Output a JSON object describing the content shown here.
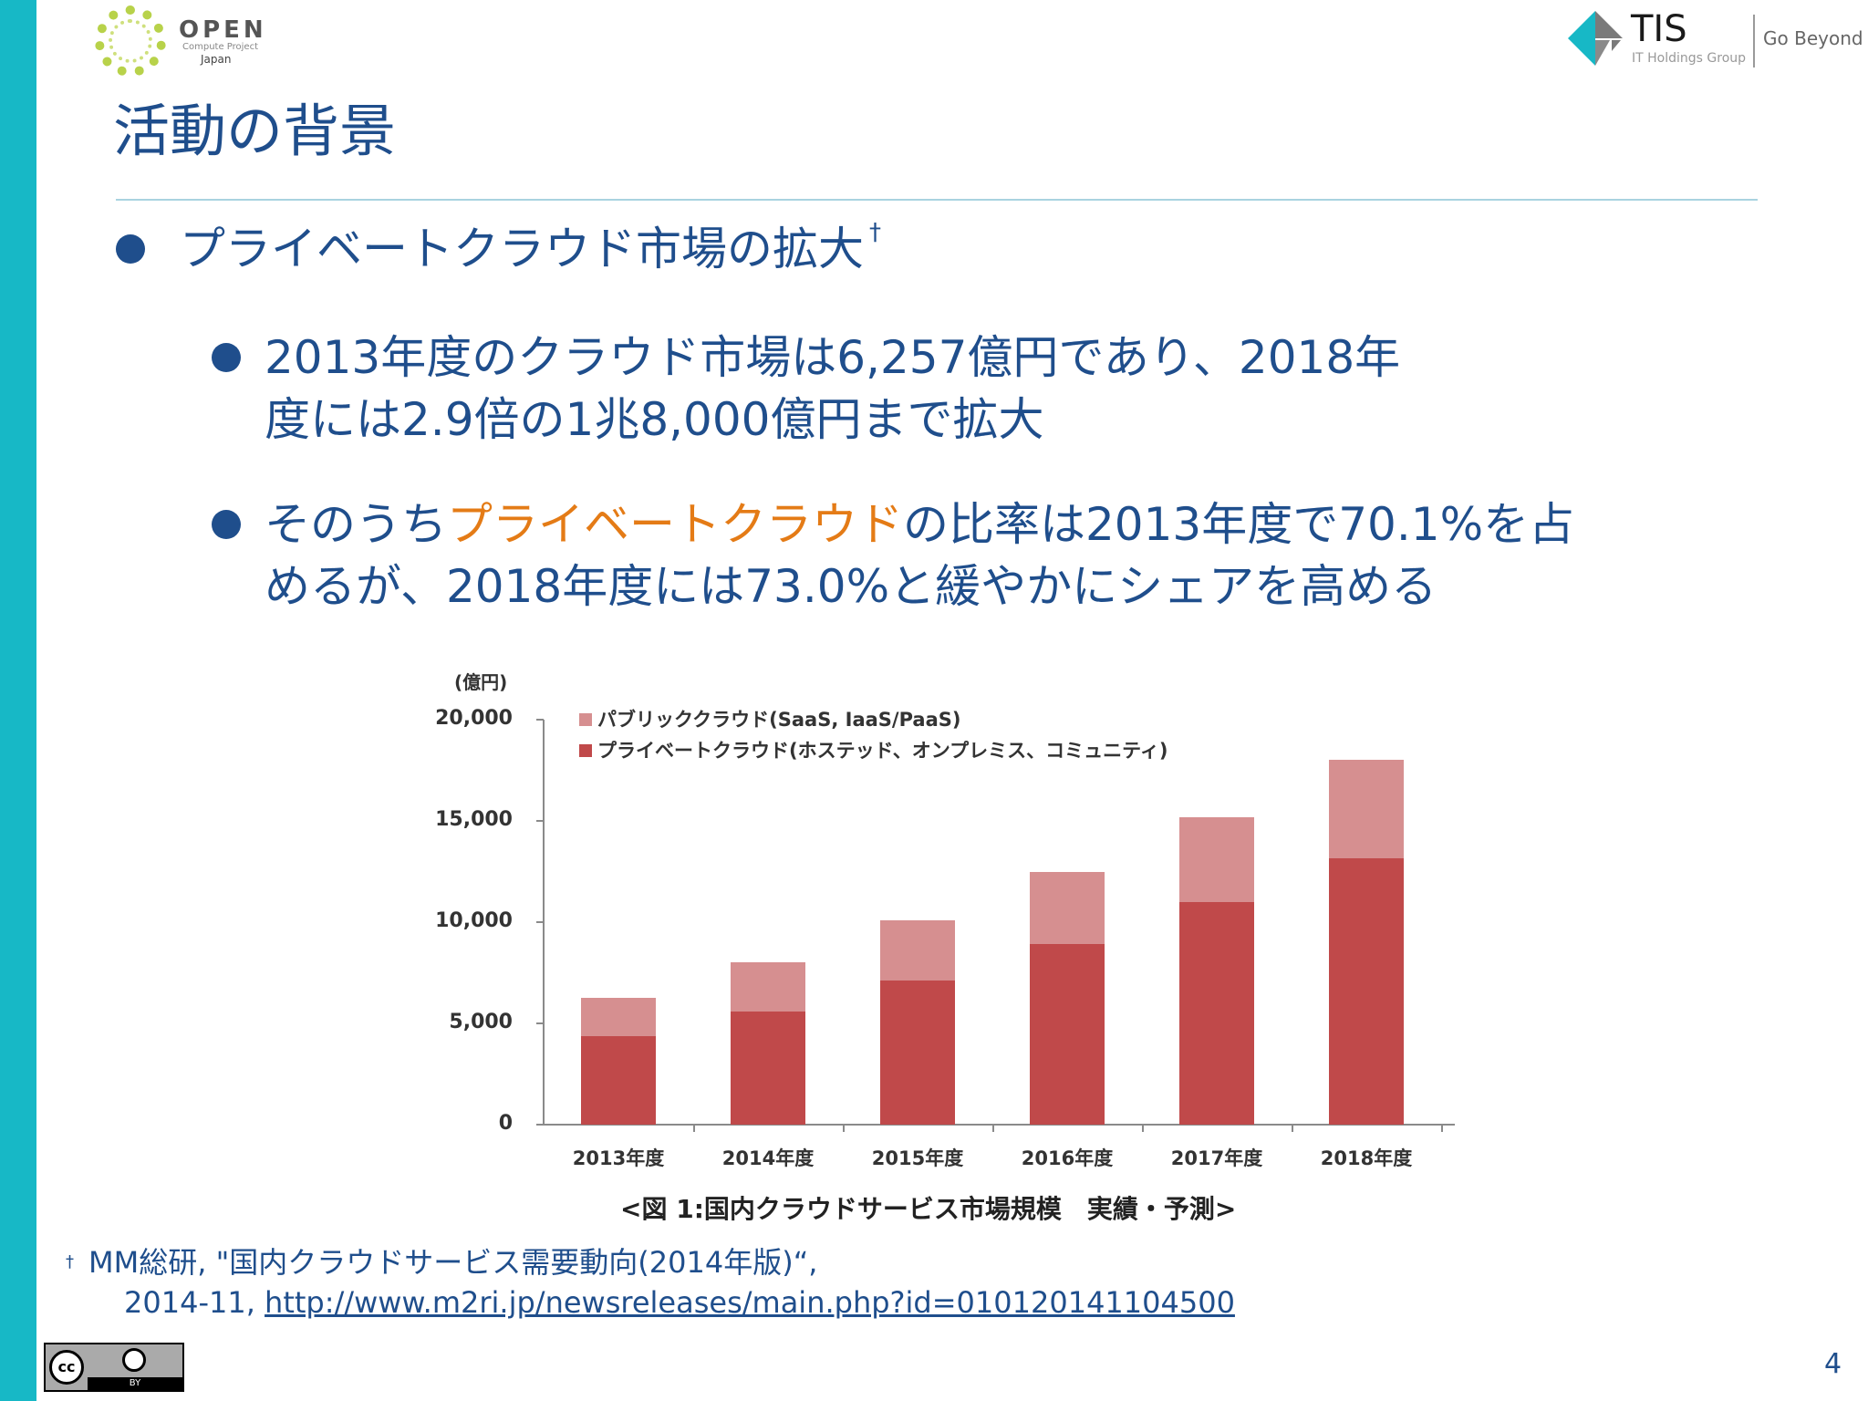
{
  "header": {
    "left_logo": {
      "name": "OPEN",
      "subtitle": "Compute Project",
      "region": "Japan"
    },
    "right_logo": {
      "name": "TIS",
      "subtitle": "IT Holdings Group",
      "tagline": "Go Beyond"
    }
  },
  "slide": {
    "title": "活動の背景",
    "bullets": [
      {
        "text": "プライベートクラウド市場の拡大",
        "footnote_mark": "†"
      }
    ],
    "sub_bullets": [
      {
        "text": "2013年度のクラウド市場は6,257億円であり、2018年度には2.9倍の1兆8,000億円まで拡大"
      },
      {
        "pre": "そのうち",
        "highlight": "プライベートクラウド",
        "post": "の比率は2013年度で70.1%を占めるが、2018年度には73.0%と緩やかにシェアを高める"
      }
    ],
    "footnote": {
      "mark": "†",
      "line1": "MM総研, \"国内クラウドサービス需要動向(2014年版)“,",
      "line2_prefix": "2014-11, ",
      "link": "http://www.m2ri.jp/newsreleases/main.php?id=010120141104500"
    },
    "license": {
      "cc": "cc",
      "by": "BY"
    },
    "page_number": "4"
  },
  "colors": {
    "side_bar": "#17b8c6",
    "title_text": "#1f4e8c",
    "accent": "#e47b16",
    "private_series": "#c0494a",
    "public_series": "#d68f90"
  },
  "chart_data": {
    "type": "bar",
    "stacked": true,
    "title": "<図 1:国内クラウドサービス市場規模　実績・予測>",
    "ylabel": "(億円)",
    "xlabel": "",
    "ylim": [
      0,
      20000
    ],
    "yticks": [
      "0",
      "5,000",
      "10,000",
      "15,000",
      "20,000"
    ],
    "grid": false,
    "legend_position": "top-left",
    "categories": [
      "2013年度",
      "2014年度",
      "2015年度",
      "2016年度",
      "2017年度",
      "2018年度"
    ],
    "series": [
      {
        "name": "プライベートクラウド(ホステッド、オンプレミス、コミュニティ)",
        "color": "#c0494a",
        "values": [
          4386,
          5600,
          7100,
          8900,
          11000,
          13140
        ]
      },
      {
        "name": "パブリッククラウド(SaaS, IaaS/PaaS)",
        "color": "#d68f90",
        "values": [
          1871,
          2400,
          3000,
          3600,
          4200,
          4860
        ]
      }
    ],
    "totals": [
      6257,
      8000,
      10100,
      12500,
      15200,
      18000
    ]
  }
}
